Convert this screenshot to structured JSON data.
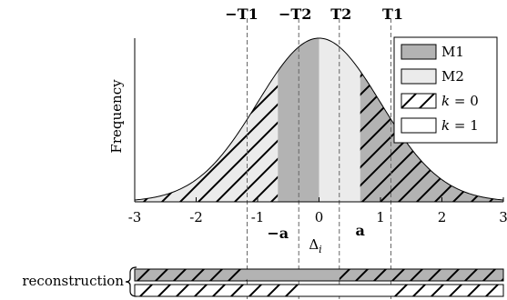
{
  "chart_data": {
    "type": "area",
    "ylabel": "Frequency",
    "xlabel": "Δ_i",
    "x_ticks": [
      -3,
      -2,
      -1,
      0,
      1,
      2,
      3
    ],
    "x_tick_labels": [
      "-3",
      "-2",
      "-1",
      "0",
      "1",
      "2",
      "3"
    ],
    "xlim": [
      -3,
      3
    ],
    "distribution": "gaussian",
    "mean": 0,
    "std": 1,
    "thresholds": {
      "T1": 1.17,
      "T2": 0.33,
      "labels": {
        "neg_T1": "−T1",
        "neg_T2": "−T2",
        "T2": "T2",
        "T1": "T1"
      }
    },
    "boundaries": {
      "a": 0.67,
      "labels": {
        "neg_a": "−a",
        "a": "a"
      }
    },
    "regions": [
      {
        "from": -3,
        "to": -0.67,
        "fill": "k=0 hatch / light"
      },
      {
        "from": -0.67,
        "to": 0,
        "fill": "M1"
      },
      {
        "from": 0,
        "to": 0.67,
        "fill": "M2"
      },
      {
        "from": 0.67,
        "to": 3,
        "fill": "k=0 hatch / M1"
      }
    ],
    "legend": {
      "position": "top-right",
      "entries": [
        {
          "label": "M1",
          "key": "m1"
        },
        {
          "label": "M2",
          "key": "m2"
        },
        {
          "label": "k = 0",
          "key": "k0"
        },
        {
          "label": "k = 1",
          "key": "k1"
        }
      ]
    },
    "reconstruction": {
      "label": "reconstruction",
      "row1_gray_range": [
        -1.17,
        0.33
      ],
      "row2_white_range": [
        -0.33,
        1.17
      ]
    },
    "colors": {
      "m1": "#b3b3b3",
      "m2": "#ebebeb",
      "k0": "#ffffff",
      "line": "#000000"
    }
  }
}
